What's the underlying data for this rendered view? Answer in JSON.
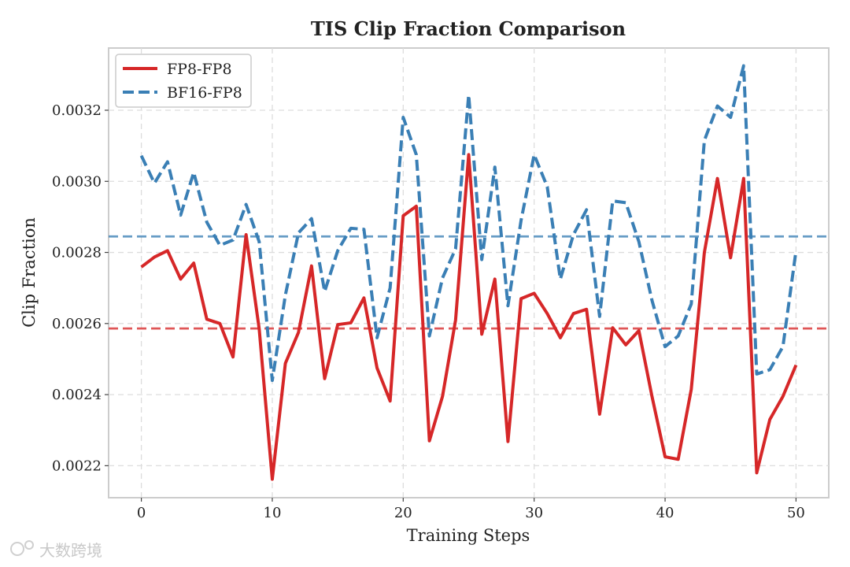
{
  "chart_data": {
    "type": "line",
    "title": "TIS Clip Fraction Comparison",
    "xlabel": "Training Steps",
    "ylabel": "Clip Fraction",
    "xlim": [
      -2.5,
      52.5
    ],
    "ylim": [
      0.00211,
      0.003375
    ],
    "xticks": [
      0,
      10,
      20,
      30,
      40,
      50
    ],
    "yticks": [
      0.0022,
      0.0024,
      0.0026,
      0.0028,
      0.003,
      0.0032
    ],
    "ytick_labels": [
      "0.0022",
      "0.0024",
      "0.0026",
      "0.0028",
      "0.0030",
      "0.0032"
    ],
    "grid": true,
    "legend_position": "top-left",
    "x": [
      0,
      1,
      2,
      3,
      4,
      5,
      6,
      7,
      8,
      9,
      10,
      11,
      12,
      13,
      14,
      15,
      16,
      17,
      18,
      19,
      20,
      21,
      22,
      23,
      24,
      25,
      26,
      27,
      28,
      29,
      30,
      31,
      32,
      33,
      34,
      35,
      36,
      37,
      38,
      39,
      40,
      41,
      42,
      43,
      44,
      45,
      46,
      47,
      48,
      49,
      50
    ],
    "series": [
      {
        "name": "FP8-FP8",
        "color": "#d62728",
        "style": "solid",
        "mean": 0.002586,
        "values": [
          0.002759,
          0.002787,
          0.002805,
          0.002725,
          0.00277,
          0.002612,
          0.0026,
          0.002506,
          0.00285,
          0.002585,
          0.002162,
          0.002488,
          0.002575,
          0.002762,
          0.002445,
          0.002597,
          0.002602,
          0.002672,
          0.002475,
          0.002382,
          0.002903,
          0.00293,
          0.00227,
          0.002395,
          0.00261,
          0.003075,
          0.00257,
          0.002725,
          0.002268,
          0.00267,
          0.002685,
          0.002628,
          0.00256,
          0.002628,
          0.00264,
          0.002345,
          0.002588,
          0.00254,
          0.00258,
          0.002395,
          0.002225,
          0.002218,
          0.002415,
          0.0028,
          0.003008,
          0.002785,
          0.003008,
          0.00218,
          0.00233,
          0.002395,
          0.002483
        ]
      },
      {
        "name": "BF16-FP8",
        "color": "#3a7fb5",
        "style": "dashed",
        "mean": 0.002845,
        "values": [
          0.003072,
          0.002995,
          0.003055,
          0.002905,
          0.003025,
          0.002885,
          0.00282,
          0.002835,
          0.002935,
          0.00283,
          0.00244,
          0.00268,
          0.002855,
          0.002895,
          0.00269,
          0.002805,
          0.002868,
          0.002865,
          0.00256,
          0.0027,
          0.00318,
          0.003075,
          0.002565,
          0.002728,
          0.00281,
          0.003243,
          0.00278,
          0.00304,
          0.00265,
          0.00289,
          0.003075,
          0.002985,
          0.002725,
          0.00285,
          0.00292,
          0.00262,
          0.002945,
          0.00294,
          0.00283,
          0.002665,
          0.002535,
          0.002565,
          0.002655,
          0.003115,
          0.003212,
          0.00318,
          0.003325,
          0.002458,
          0.00247,
          0.002535,
          0.002805
        ]
      }
    ]
  },
  "watermark": "大数跨境"
}
